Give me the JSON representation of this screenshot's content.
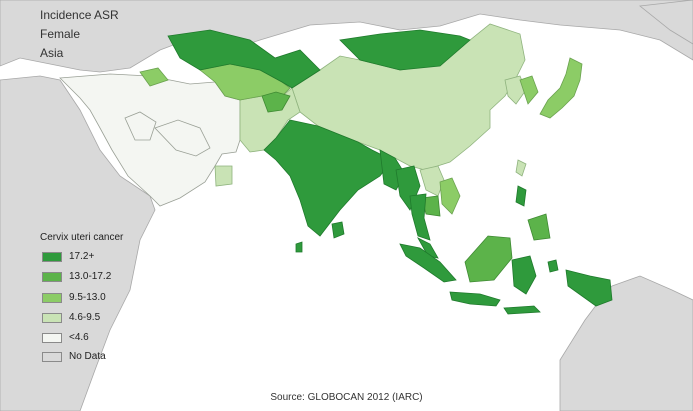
{
  "title": {
    "line1": "Incidence ASR",
    "line2": "Female",
    "line3": "Asia"
  },
  "legend": {
    "title": "Cervix uteri cancer",
    "items": [
      {
        "label": "17.2+",
        "color": "#2f9a3c"
      },
      {
        "label": "13.0-17.2",
        "color": "#5cb34a"
      },
      {
        "label": "9.5-13.0",
        "color": "#8ccc66"
      },
      {
        "label": "4.6-9.5",
        "color": "#c9e3b5"
      },
      {
        "label": "<4.6",
        "color": "#f4f6f2"
      },
      {
        "label": "No Data",
        "color": "#d9d9d9"
      }
    ]
  },
  "source": "Source: GLOBOCAN 2012 (IARC)",
  "colors": {
    "ocean": "#ffffff",
    "no_data_land": "#d9d9d9",
    "border": "#a8a8a8"
  }
}
